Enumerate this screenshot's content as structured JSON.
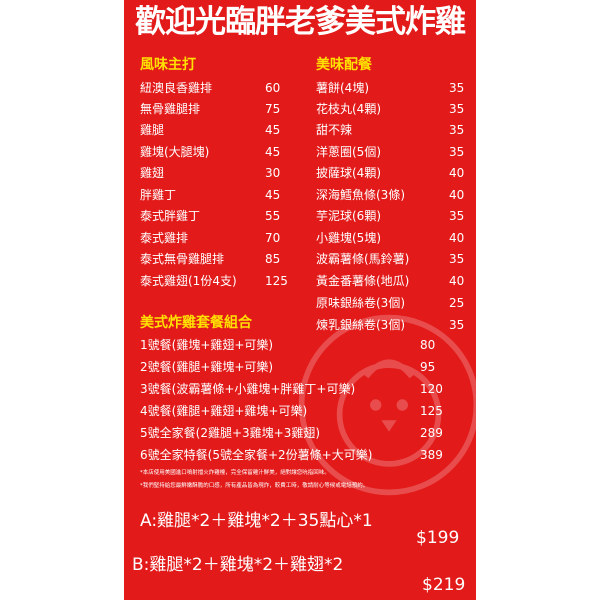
{
  "title": "歡迎光臨胖老爹美式炸雞",
  "flavor": {
    "heading": "風味主打",
    "items": [
      {
        "name": "紐澳良香雞排",
        "price": "60"
      },
      {
        "name": "無骨雞腿排",
        "price": "75"
      },
      {
        "name": "雞腿",
        "price": "45"
      },
      {
        "name": "雞塊(大腿塊)",
        "price": "45"
      },
      {
        "name": "雞翅",
        "price": "30"
      },
      {
        "name": "胖雞丁",
        "price": "45"
      },
      {
        "name": "泰式胖雞丁",
        "price": "55"
      },
      {
        "name": "泰式雞排",
        "price": "70"
      },
      {
        "name": "泰式無骨雞腿排",
        "price": "85"
      },
      {
        "name": "泰式雞翅(1份4支)",
        "price": "125"
      }
    ]
  },
  "sides": {
    "heading": "美味配餐",
    "items": [
      {
        "name": "薯餅(4塊)",
        "price": "35"
      },
      {
        "name": "花枝丸(4顆)",
        "price": "35"
      },
      {
        "name": "甜不辣",
        "price": "35"
      },
      {
        "name": "洋蔥圈(5個)",
        "price": "35"
      },
      {
        "name": "披薩球(4顆)",
        "price": "40"
      },
      {
        "name": "深海鱈魚條(3條)",
        "price": "40"
      },
      {
        "name": "芋泥球(6顆)",
        "price": "35"
      },
      {
        "name": "小雞塊(5塊)",
        "price": "40"
      },
      {
        "name": "波霸薯條(馬鈴薯)",
        "price": "35"
      },
      {
        "name": "黃金番薯條(地瓜)",
        "price": "40"
      },
      {
        "name": "原味銀絲卷(3個)",
        "price": "25"
      },
      {
        "name": "煉乳銀絲卷(3個)",
        "price": "35"
      }
    ]
  },
  "combos": {
    "heading": "美式炸雞套餐組合",
    "items": [
      {
        "name": "1號餐(雞塊+雞翅+可樂)",
        "price": "80"
      },
      {
        "name": "2號餐(雞腿+雞塊+可樂)",
        "price": "95"
      },
      {
        "name": "3號餐(波霸薯條+小雞塊+胖雞丁+可樂)",
        "price": "120"
      },
      {
        "name": "4號餐(雞腿+雞翅+雞塊+可樂)",
        "price": "125"
      },
      {
        "name": "5號全家餐(2雞腿+3雞塊+3雞翅)",
        "price": "289"
      },
      {
        "name": "6號全家特餐(5號全家餐+2份薯條+大可樂)",
        "price": "389"
      }
    ]
  },
  "notes": [
    "*本店使用美國進口噴射擋火炸雞檯，完全保留雞汁鮮美，絕對讓您吮指回味。",
    "*我們堅持給您最鮮嫩酥脆的口感，所有產品皆為現炸，較費工時，敬請耐心等候或電話預約。"
  ],
  "deals": [
    {
      "text": "A:雞腿*2＋雞塊*2＋35點心*1",
      "price": "$199"
    },
    {
      "text": "B:雞腿*2＋雞塊*2＋雞翅*2",
      "price": "$219"
    }
  ],
  "colors": {
    "poster_red": "#e21a1a",
    "heading_yellow": "#ffe000",
    "text": "#ffffff"
  },
  "icons": {
    "mascot": "chick-mascot-icon"
  }
}
